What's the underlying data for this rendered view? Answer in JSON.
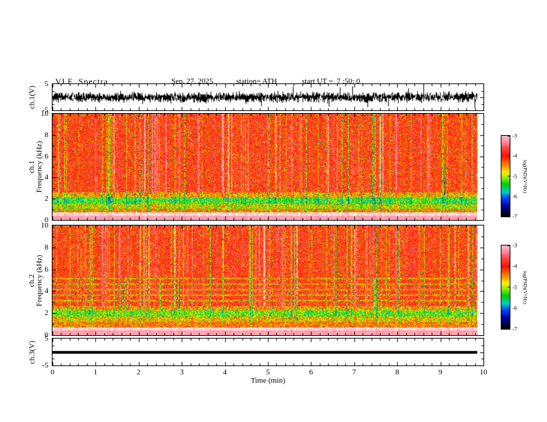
{
  "header": {
    "title": "VLF  Spectra",
    "date": "Sep. 27, 2025",
    "station": "station= ATH",
    "start_ut": "start UT =  7 :50: 0"
  },
  "chart_data": {
    "type": "heatmap",
    "title": "VLF Spectra",
    "date": "Sep. 27, 2025",
    "station": "ATH",
    "start_ut": "7:50:0",
    "x": {
      "label": "Time (min)",
      "min": 0,
      "max": 10,
      "major_ticks": [
        0,
        1,
        2,
        3,
        4,
        5,
        6,
        7,
        8,
        9,
        10
      ],
      "minor_step": 0.2,
      "data_end": 9.85
    },
    "panels": [
      {
        "id": "ch1_voltage",
        "kind": "line",
        "ylabel_lines": [
          "ch.1(V)"
        ],
        "ymin": -5,
        "ymax": 5,
        "ytick_labels": [
          5,
          -5
        ],
        "ymajor": [
          0
        ],
        "yminor": [
          2.5,
          -2.5
        ],
        "seed": 7,
        "series_summary": {
          "mean_V": 0,
          "typical_amplitude_V": 2,
          "peak_amplitude_V": 4.5,
          "appearance": "dense black broadband noise around 0 V for the full 0-9.85 min record"
        }
      },
      {
        "id": "ch1_spectrogram",
        "kind": "spectrogram",
        "ylabel_lines": [
          "ch.1",
          "Frequency (kHz)"
        ],
        "ymin": 0,
        "ymax": 10,
        "ytick_labels": [
          0,
          2,
          4,
          6,
          8,
          10
        ],
        "ymajor": [
          2,
          4,
          6,
          8
        ],
        "yminor": [
          1,
          3,
          5,
          7,
          9
        ],
        "seed": 42,
        "psd_units": "log10(PSD) V^2/Hz",
        "bands": [
          {
            "f_khz": [
              0,
              0.45
            ],
            "psd": -3.15,
            "noise": 0.12,
            "stripe": 0.15
          },
          {
            "f_khz": [
              0.45,
              0.75
            ],
            "psd": -2.85,
            "noise": 0.25,
            "stripe": 0.2
          },
          {
            "f_khz": [
              0.75,
              1.1
            ],
            "psd": -4.5,
            "noise": 0.9,
            "stripe": 0.4
          },
          {
            "f_khz": [
              1.1,
              1.55
            ],
            "psd": -4.9,
            "noise": 0.65,
            "stripe": 0.5
          },
          {
            "f_khz": [
              1.55,
              2.2
            ],
            "psd": -5.35,
            "noise": 0.55,
            "stripe": 0.5
          },
          {
            "f_khz": [
              2.2,
              2.6
            ],
            "psd": -4.6,
            "noise": 0.6,
            "stripe": 0.8
          },
          {
            "f_khz": [
              2.6,
              10
            ],
            "psd": -3.95,
            "noise": 0.5,
            "stripe": 1.0
          }
        ],
        "harmonic_rows_khz": [],
        "features": "red/orange background above 2.5 kHz with dense vertical sferic striations, green streaks 2.5-5 kHz, green band 1.5-2.2 kHz, saturated pink/white band below 0.75 kHz"
      },
      {
        "id": "ch2_spectrogram",
        "kind": "spectrogram",
        "ylabel_lines": [
          "ch.2",
          "Frequency (kHz)"
        ],
        "ymin": 0,
        "ymax": 10,
        "ytick_labels": [
          0,
          2,
          4,
          6,
          8,
          10
        ],
        "ymajor": [
          2,
          4,
          6,
          8
        ],
        "yminor": [
          1,
          3,
          5,
          7,
          9
        ],
        "seed": 1337,
        "psd_units": "log10(PSD) V^2/Hz",
        "bands": [
          {
            "f_khz": [
              0,
              0.45
            ],
            "psd": -3.15,
            "noise": 0.12,
            "stripe": 0.15
          },
          {
            "f_khz": [
              0.45,
              0.75
            ],
            "psd": -2.85,
            "noise": 0.25,
            "stripe": 0.2
          },
          {
            "f_khz": [
              0.75,
              1.2
            ],
            "psd": -4.35,
            "noise": 0.8,
            "stripe": 0.4
          },
          {
            "f_khz": [
              1.2,
              1.7
            ],
            "psd": -4.7,
            "noise": 0.6,
            "stripe": 0.5
          },
          {
            "f_khz": [
              1.7,
              2.3
            ],
            "psd": -5.2,
            "noise": 0.55,
            "stripe": 0.5
          },
          {
            "f_khz": [
              2.3,
              2.7
            ],
            "psd": -4.55,
            "noise": 0.6,
            "stripe": 0.8
          },
          {
            "f_khz": [
              2.7,
              10
            ],
            "psd": -3.95,
            "noise": 0.5,
            "stripe": 1.0
          }
        ],
        "harmonic_rows_khz": [
          3.2,
          3.7,
          4.2,
          4.7,
          5.2
        ],
        "features": "similar to ch.1 with horizontal harmonic line structure between 3 and 5.5 kHz"
      },
      {
        "id": "ch3_voltage",
        "kind": "line",
        "ylabel_lines": [
          "ch.3(V)"
        ],
        "ymin": -5,
        "ymax": 5,
        "ytick_labels": [
          5,
          -5
        ],
        "ymajor": [
          0
        ],
        "yminor": [
          2.5,
          -2.5
        ],
        "seed": 3,
        "series_summary": {
          "mean_V": 0,
          "typical_amplitude_V": 0.05,
          "peak_amplitude_V": 0.1,
          "appearance": "flat thick black line at 0 V for the full record"
        }
      }
    ],
    "colorbars": [
      {
        "label": "log(PSD)(V²/Hz)",
        "min": -7,
        "max": -3,
        "ticks": [
          -3,
          -4,
          -5,
          -6,
          -7
        ]
      },
      {
        "label": "log(PSD)(V²/Hz)",
        "min": -7,
        "max": -3,
        "ticks": [
          -3,
          -4,
          -5,
          -6,
          -7
        ]
      }
    ],
    "colormap": [
      {
        "v": -7.0,
        "c": "#000000"
      },
      {
        "v": -6.5,
        "c": "#000099"
      },
      {
        "v": -6.1,
        "c": "#0044ff"
      },
      {
        "v": -5.8,
        "c": "#00cccc"
      },
      {
        "v": -5.4,
        "c": "#00cc00"
      },
      {
        "v": -5.1,
        "c": "#88ee00"
      },
      {
        "v": -4.8,
        "c": "#ffee00"
      },
      {
        "v": -4.4,
        "c": "#ff7700"
      },
      {
        "v": -4.0,
        "c": "#ff1100"
      },
      {
        "v": -3.6,
        "c": "#ff4444"
      },
      {
        "v": -3.3,
        "c": "#ff8899"
      },
      {
        "v": -3.0,
        "c": "#ffbbc8"
      },
      {
        "v": -2.6,
        "c": "#ffffff"
      }
    ]
  }
}
